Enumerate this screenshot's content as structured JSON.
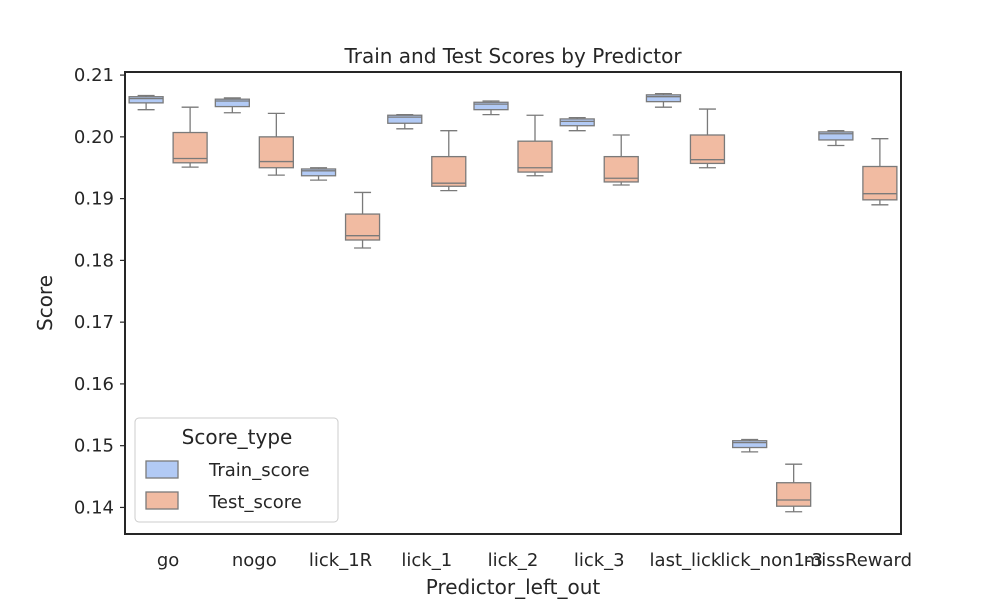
{
  "chart_data": {
    "type": "box",
    "title": "Train and Test Scores by Predictor",
    "xlabel": "Predictor_left_out",
    "ylabel": "Score",
    "ylim": [
      0.1357,
      0.2105
    ],
    "yticks": [
      0.14,
      0.15,
      0.16,
      0.17,
      0.18,
      0.19,
      0.2,
      0.21
    ],
    "ytick_labels": [
      "0.14",
      "0.15",
      "0.16",
      "0.17",
      "0.18",
      "0.19",
      "0.20",
      "0.21"
    ],
    "categories": [
      "go",
      "nogo",
      "lick_1R",
      "lick_1",
      "lick_2",
      "lick_3",
      "last_lick",
      "lick_non1-3",
      "missReward"
    ],
    "grid": false,
    "legend": {
      "title": "Score_type",
      "placement": "lower-left"
    },
    "series": [
      {
        "name": "Train_score",
        "color": "#b2caf5",
        "boxes": [
          {
            "whislo": 0.2044,
            "q1": 0.2055,
            "med": 0.2062,
            "q3": 0.2065,
            "whishi": 0.2067
          },
          {
            "whislo": 0.2039,
            "q1": 0.2049,
            "med": 0.2058,
            "q3": 0.2061,
            "whishi": 0.2063
          },
          {
            "whislo": 0.193,
            "q1": 0.1937,
            "med": 0.1945,
            "q3": 0.1948,
            "whishi": 0.195
          },
          {
            "whislo": 0.2013,
            "q1": 0.2022,
            "med": 0.2032,
            "q3": 0.2035,
            "whishi": 0.2036
          },
          {
            "whislo": 0.2036,
            "q1": 0.2044,
            "med": 0.2053,
            "q3": 0.2056,
            "whishi": 0.2058
          },
          {
            "whislo": 0.201,
            "q1": 0.2018,
            "med": 0.2025,
            "q3": 0.2029,
            "whishi": 0.2031
          },
          {
            "whislo": 0.2048,
            "q1": 0.2057,
            "med": 0.2065,
            "q3": 0.2068,
            "whishi": 0.207
          },
          {
            "whislo": 0.149,
            "q1": 0.1497,
            "med": 0.1505,
            "q3": 0.1508,
            "whishi": 0.151
          },
          {
            "whislo": 0.1986,
            "q1": 0.1995,
            "med": 0.2005,
            "q3": 0.2008,
            "whishi": 0.201
          }
        ]
      },
      {
        "name": "Test_score",
        "color": "#f1bba2",
        "boxes": [
          {
            "whislo": 0.1951,
            "q1": 0.1958,
            "med": 0.1965,
            "q3": 0.2007,
            "whishi": 0.2048
          },
          {
            "whislo": 0.1938,
            "q1": 0.195,
            "med": 0.196,
            "q3": 0.2,
            "whishi": 0.2038
          },
          {
            "whislo": 0.182,
            "q1": 0.1833,
            "med": 0.184,
            "q3": 0.1875,
            "whishi": 0.191
          },
          {
            "whislo": 0.1913,
            "q1": 0.192,
            "med": 0.1925,
            "q3": 0.1968,
            "whishi": 0.201
          },
          {
            "whislo": 0.1937,
            "q1": 0.1943,
            "med": 0.195,
            "q3": 0.1993,
            "whishi": 0.2035
          },
          {
            "whislo": 0.1922,
            "q1": 0.1927,
            "med": 0.1933,
            "q3": 0.1968,
            "whishi": 0.2003
          },
          {
            "whislo": 0.195,
            "q1": 0.1957,
            "med": 0.1963,
            "q3": 0.2003,
            "whishi": 0.2045
          },
          {
            "whislo": 0.1393,
            "q1": 0.1402,
            "med": 0.1412,
            "q3": 0.144,
            "whishi": 0.147
          },
          {
            "whislo": 0.189,
            "q1": 0.1898,
            "med": 0.1908,
            "q3": 0.1952,
            "whishi": 0.1997
          }
        ]
      }
    ]
  }
}
